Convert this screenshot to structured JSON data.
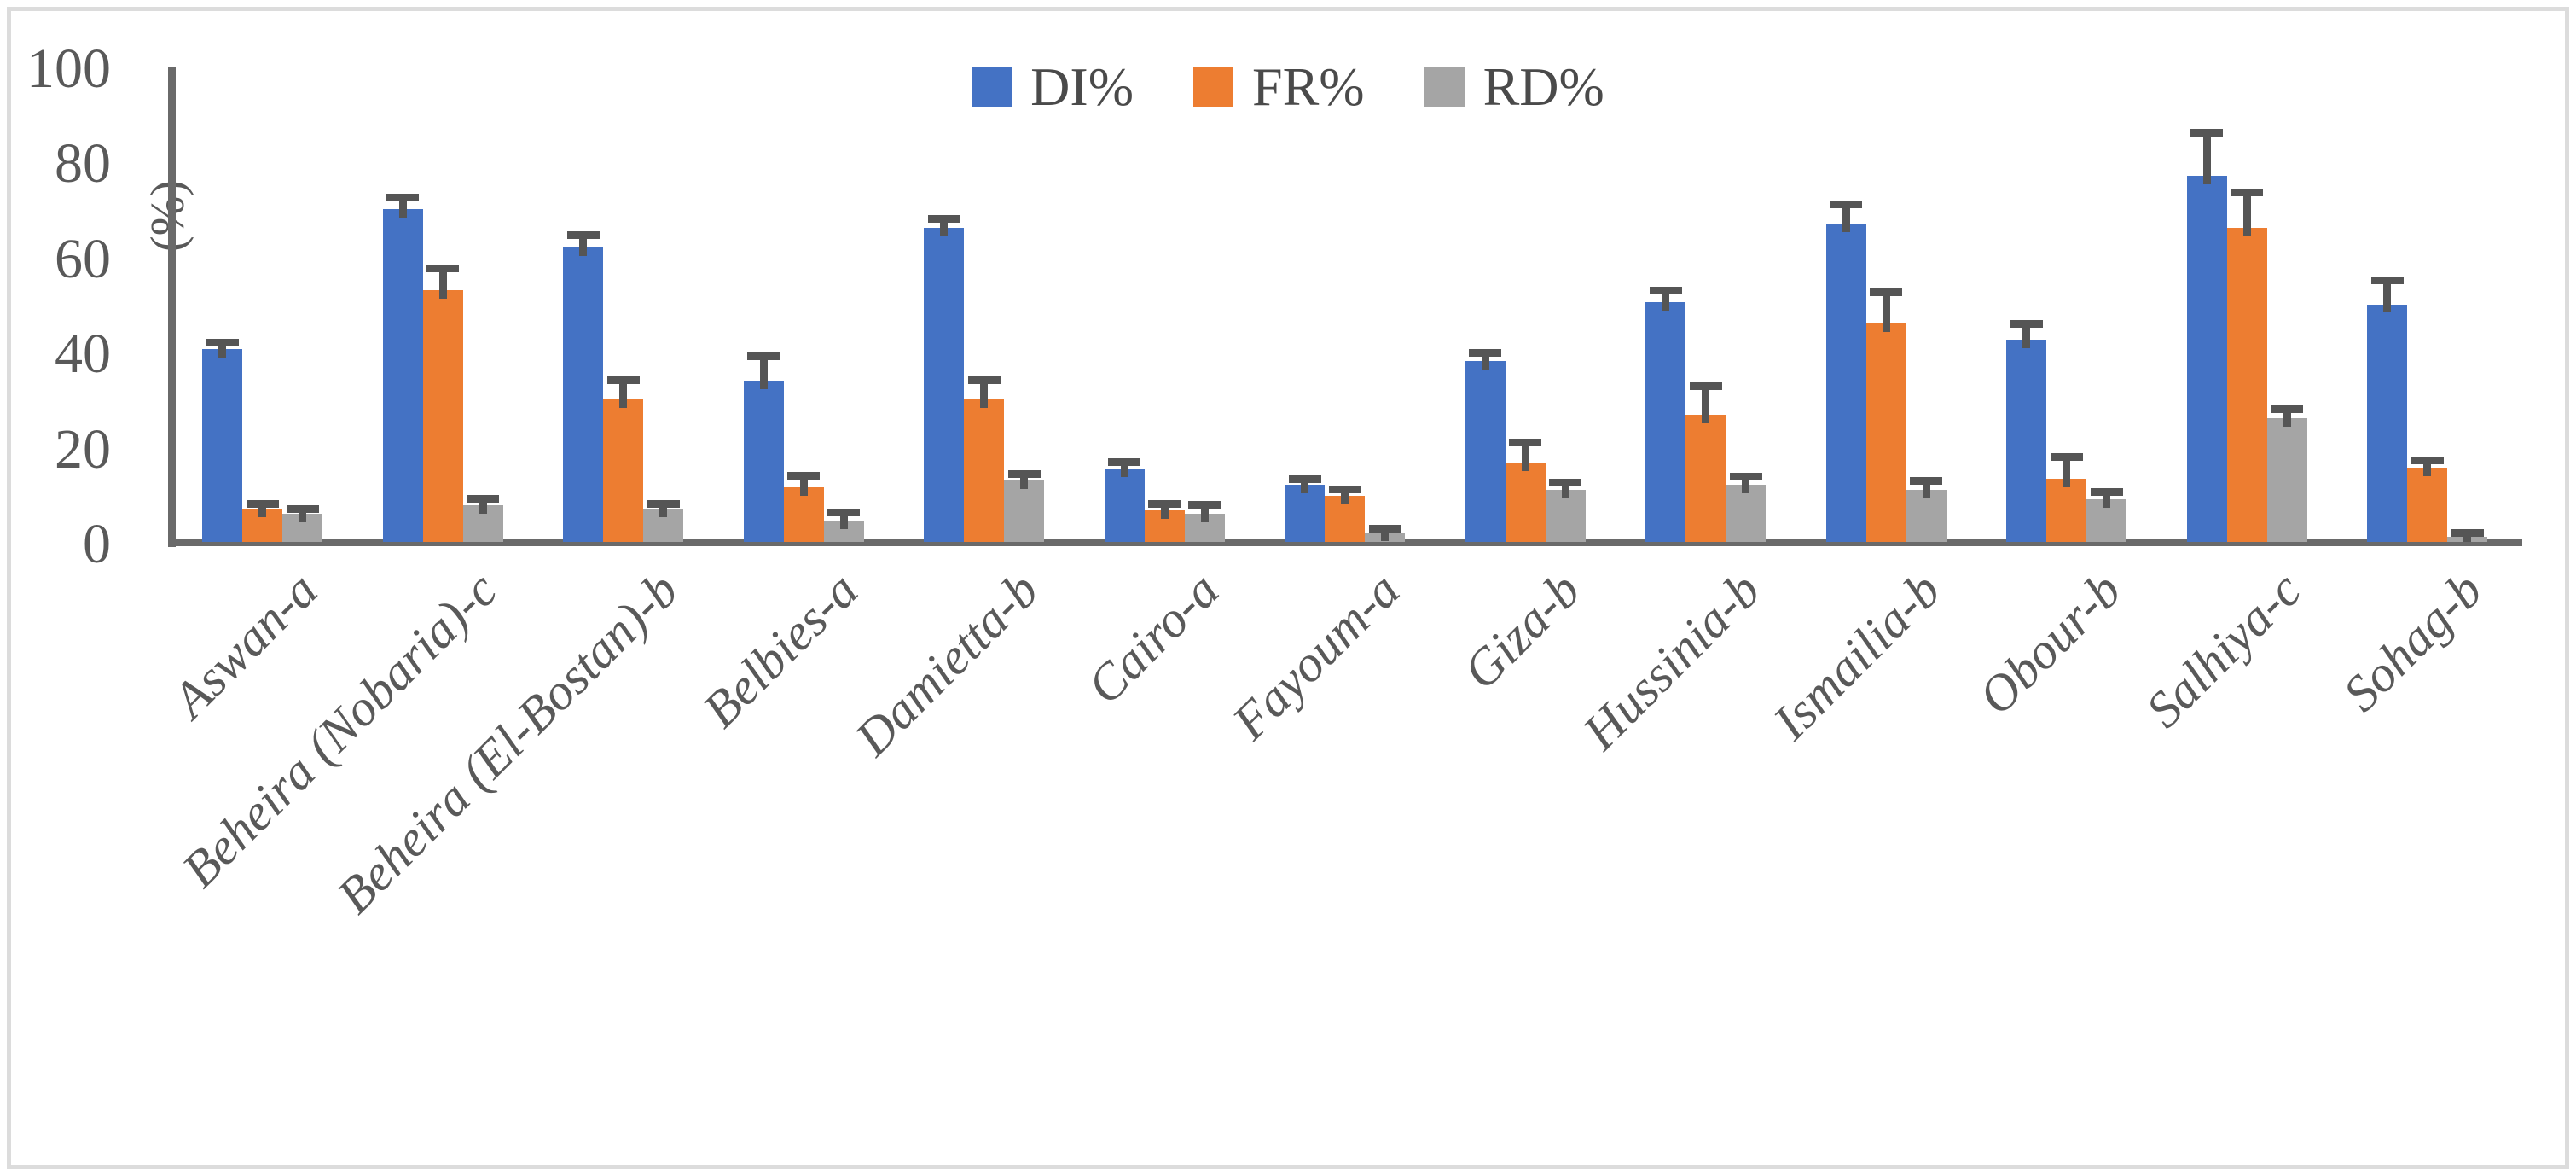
{
  "figure": {
    "background": "#ffffff",
    "frame_color": "#dcdcdc"
  },
  "chart_data": {
    "type": "bar",
    "title": "",
    "xlabel": "",
    "ylabel": "(%)",
    "ylim": [
      0,
      100
    ],
    "yticks": [
      0,
      20,
      40,
      60,
      80,
      100
    ],
    "grid": false,
    "legend_position": "top-center",
    "axis_color": "#6a6a6a",
    "error_bar_color": "#555555",
    "tick_label_color": "#595959",
    "error_bars": "plus direction only, caps",
    "categories": [
      "Aswan-a",
      "Beheira (Nobaria)-c",
      "Beheira (El-Bostan)-b",
      "Belbies-a",
      "Damietta-b",
      "Cairo-a",
      "Fayoum-a",
      "Giza-b",
      "Hussinia-b",
      "Ismailia-b",
      "Obour-b",
      "Salhiya-c",
      "Sohag-b"
    ],
    "series": [
      {
        "key": "di",
        "label": "DI%",
        "color": "#4472C4",
        "values": [
          40.5,
          70,
          62,
          34,
          66,
          15.5,
          12,
          38,
          50.5,
          67,
          42.5,
          77,
          50
        ],
        "errors_plus": [
          1.5,
          2.5,
          2.5,
          5,
          2,
          1.2,
          1.2,
          1.7,
          2.3,
          4,
          3.3,
          9,
          5
        ]
      },
      {
        "key": "fr",
        "label": "FR%",
        "color": "#ED7D31",
        "values": [
          7,
          53,
          30,
          11.5,
          30,
          6.7,
          9.7,
          16.7,
          26.7,
          46,
          13.3,
          66,
          15.7
        ],
        "errors_plus": [
          1,
          4.5,
          4,
          2.5,
          4,
          1.3,
          1.3,
          4.3,
          6,
          6.5,
          4.5,
          7.5,
          1.5
        ]
      },
      {
        "key": "rd",
        "label": "RD%",
        "color": "#A5A5A5",
        "values": [
          6,
          7.7,
          7,
          4.5,
          13,
          6,
          2,
          11,
          12,
          11,
          9,
          26,
          1
        ],
        "errors_plus": [
          1,
          1.3,
          1,
          1.7,
          1.3,
          1.8,
          0.8,
          1.4,
          1.8,
          1.8,
          1.5,
          2,
          0.8
        ]
      }
    ]
  }
}
